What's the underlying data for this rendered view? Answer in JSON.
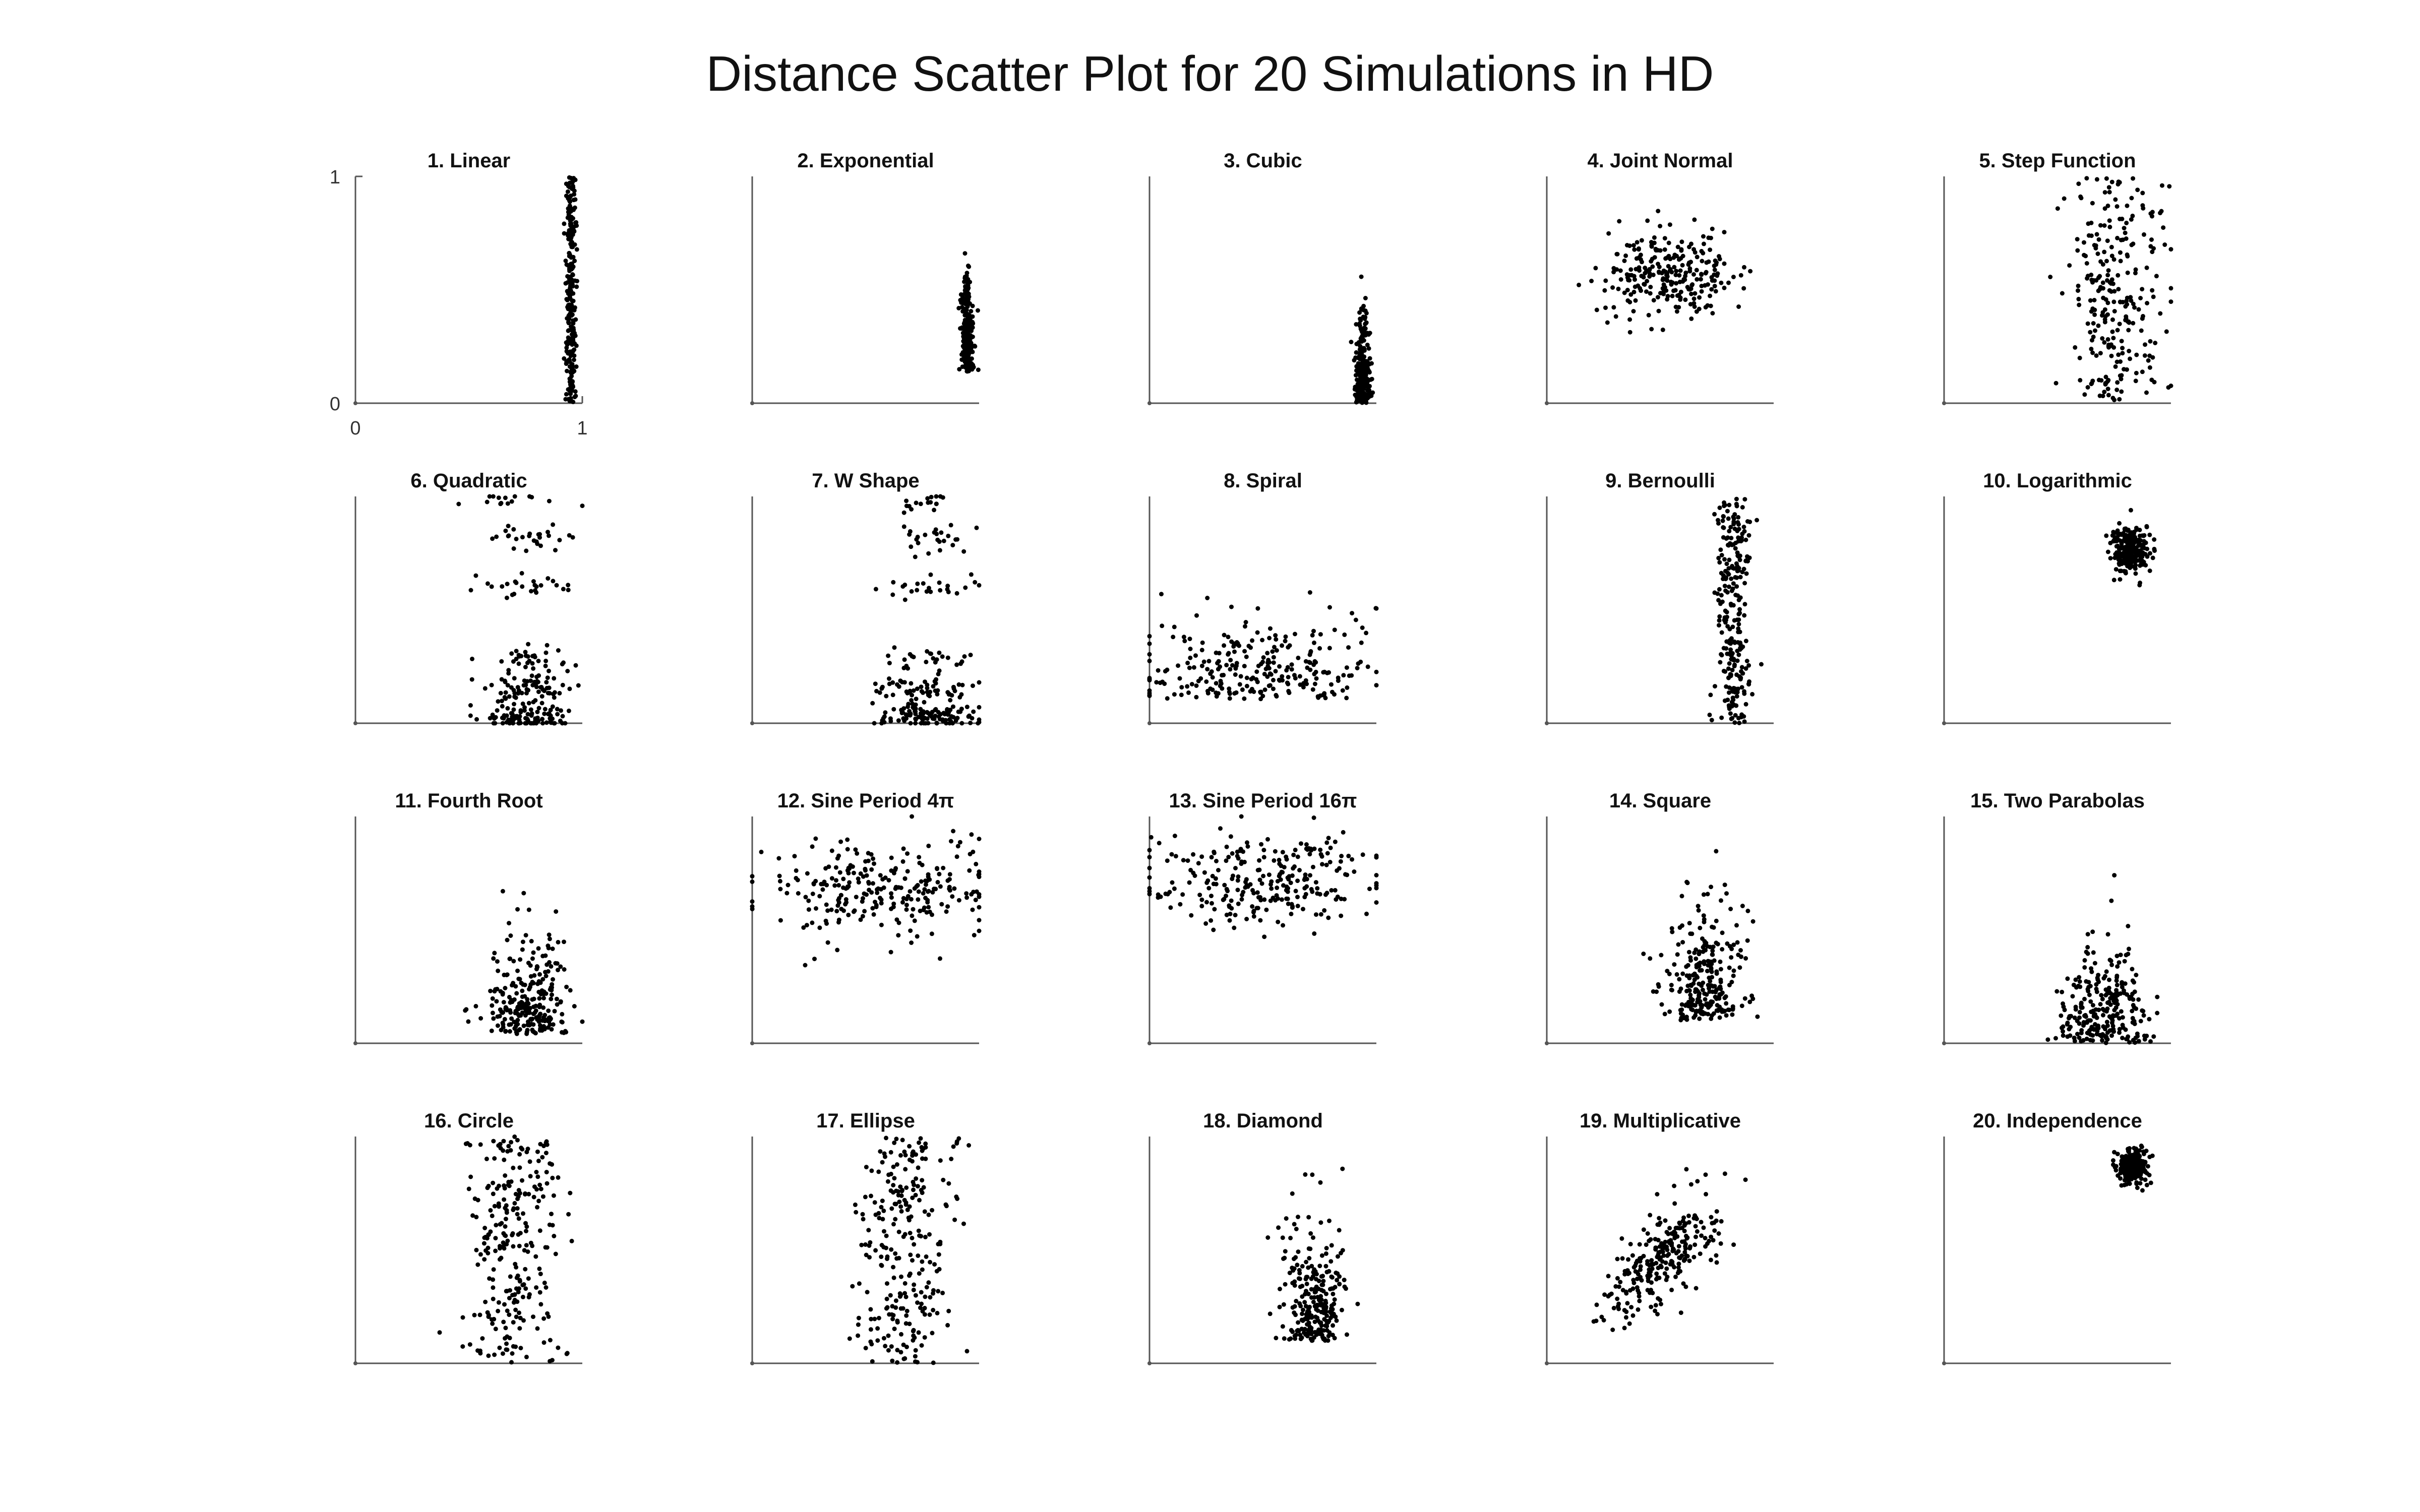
{
  "figure": {
    "title": "Distance Scatter Plot for 20 Simulations in HD"
  },
  "chart_data": {
    "type": "scatter",
    "xlim": [
      0,
      1
    ],
    "ylim": [
      0,
      1
    ],
    "tick_labels": {
      "x": [
        "0",
        "1"
      ],
      "y": [
        "0",
        "1"
      ]
    },
    "grid": false,
    "color": "#000000",
    "panels": [
      {
        "title": "1. Linear",
        "dist": {
          "kind": "normal",
          "mx": 0.95,
          "sx": 0.012,
          "my": 0.5,
          "sy": 0.3,
          "ymode": "uniform"
        }
      },
      {
        "title": "2. Exponential",
        "dist": {
          "kind": "normal",
          "mx": 0.95,
          "sx": 0.014,
          "my": 0.3,
          "sy": 0.2,
          "ymode": "skew"
        }
      },
      {
        "title": "3. Cubic",
        "dist": {
          "kind": "normal",
          "mx": 0.94,
          "sx": 0.015,
          "my": 0.12,
          "sy": 0.2,
          "ymode": "skew"
        }
      },
      {
        "title": "4. Joint Normal",
        "dist": {
          "kind": "normal",
          "mx": 0.55,
          "sx": 0.14,
          "my": 0.58,
          "sy": 0.1,
          "ymode": "normal"
        }
      },
      {
        "title": "5. Step Function",
        "dist": {
          "kind": "normal",
          "mx": 0.75,
          "sx": 0.11,
          "my": 0.35,
          "sy": 0.25,
          "ymode": "uniform"
        }
      },
      {
        "title": "6. Quadratic",
        "dist": {
          "kind": "normal",
          "mx": 0.75,
          "sx": 0.1,
          "my": 0.2,
          "sy": 0.3,
          "ymode": "banded"
        }
      },
      {
        "title": "7. W Shape",
        "dist": {
          "kind": "normal",
          "mx": 0.78,
          "sx": 0.1,
          "my": 0.2,
          "sy": 0.3,
          "ymode": "banded"
        }
      },
      {
        "title": "8. Spiral",
        "dist": {
          "kind": "normal",
          "mx": 0.45,
          "sx": 0.28,
          "my": 0.25,
          "sy": 0.18,
          "ymode": "skew"
        }
      },
      {
        "title": "9. Bernoulli",
        "dist": {
          "kind": "normal",
          "mx": 0.82,
          "sx": 0.04,
          "my": 0.5,
          "sy": 0.3,
          "ymode": "uniform"
        }
      },
      {
        "title": "10. Logarithmic",
        "dist": {
          "kind": "normal",
          "mx": 0.82,
          "sx": 0.04,
          "my": 0.76,
          "sy": 0.05,
          "ymode": "normal"
        }
      },
      {
        "title": "11. Fourth Root",
        "dist": {
          "kind": "normal",
          "mx": 0.77,
          "sx": 0.09,
          "my": 0.2,
          "sy": 0.2,
          "ymode": "skew"
        }
      },
      {
        "title": "12. Sine Period 4π",
        "dist": {
          "kind": "normal",
          "mx": 0.55,
          "sx": 0.25,
          "my": 0.68,
          "sy": 0.1,
          "ymode": "normal"
        }
      },
      {
        "title": "13. Sine Period 16π",
        "dist": {
          "kind": "normal",
          "mx": 0.5,
          "sx": 0.26,
          "my": 0.72,
          "sy": 0.1,
          "ymode": "normal"
        }
      },
      {
        "title": "14. Square",
        "dist": {
          "kind": "normal",
          "mx": 0.7,
          "sx": 0.09,
          "my": 0.3,
          "sy": 0.25,
          "ymode": "skew"
        }
      },
      {
        "title": "15. Two Parabolas",
        "dist": {
          "kind": "normal",
          "mx": 0.7,
          "sx": 0.1,
          "my": 0.15,
          "sy": 0.2,
          "ymode": "skew"
        }
      },
      {
        "title": "16. Circle",
        "dist": {
          "kind": "normal",
          "mx": 0.7,
          "sx": 0.1,
          "my": 0.45,
          "sy": 0.3,
          "ymode": "uniform"
        }
      },
      {
        "title": "17. Ellipse",
        "dist": {
          "kind": "normal",
          "mx": 0.67,
          "sx": 0.1,
          "my": 0.45,
          "sy": 0.3,
          "ymode": "uniform"
        }
      },
      {
        "title": "18. Diamond",
        "dist": {
          "kind": "normal",
          "mx": 0.72,
          "sx": 0.07,
          "my": 0.3,
          "sy": 0.25,
          "ymode": "skew"
        }
      },
      {
        "title": "19. Multiplicative",
        "dist": {
          "kind": "normal",
          "mx": 0.5,
          "sx": 0.13,
          "my": 0.5,
          "sy": 0.12,
          "ymode": "trend"
        }
      },
      {
        "title": "20. Independence",
        "dist": {
          "kind": "normal",
          "mx": 0.83,
          "sx": 0.03,
          "my": 0.87,
          "sy": 0.04,
          "ymode": "normal"
        }
      }
    ]
  }
}
